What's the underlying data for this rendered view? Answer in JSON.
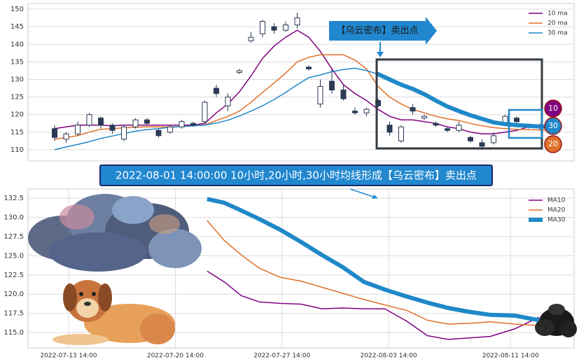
{
  "chart_data": [
    {
      "type": "candlestick",
      "open": [
        116,
        113,
        114.5,
        117,
        119,
        117,
        113,
        116.5,
        118.5,
        115.5,
        115,
        116.5,
        117.5,
        118,
        127.5,
        122.5,
        132,
        141,
        143,
        145,
        144,
        145.5,
        133.5,
        123,
        129.5,
        127,
        121,
        120.5,
        124,
        117,
        112.5,
        122,
        119,
        117.5,
        116,
        115.5,
        113.5,
        112,
        112,
        117.5,
        119,
        117,
        116.5,
        117
      ],
      "high": [
        117,
        115,
        118,
        120.5,
        119.5,
        117.5,
        117,
        119,
        119,
        116,
        117,
        118.5,
        118,
        124,
        128.5,
        126,
        133,
        143.5,
        147,
        146,
        146.5,
        149,
        134,
        130,
        133,
        128.5,
        122,
        122,
        124.5,
        118,
        117,
        123,
        120,
        118,
        116.5,
        118,
        114,
        113,
        115,
        120,
        119.5,
        117.5,
        117.5,
        118
      ],
      "low": [
        112.5,
        112,
        114,
        116.5,
        116,
        114.5,
        112.5,
        116,
        117,
        113.5,
        114.5,
        116,
        116.5,
        117.5,
        125,
        121,
        131.5,
        140.5,
        142,
        143,
        143.5,
        144.5,
        132.5,
        122,
        126,
        124,
        120,
        119.5,
        122,
        114,
        112,
        120,
        118.5,
        116.5,
        115,
        115,
        112,
        110,
        111.5,
        117,
        117.5,
        116,
        115.5,
        116.5
      ],
      "close": [
        113.5,
        114.5,
        117,
        120,
        117,
        115.5,
        116.5,
        118.5,
        117.5,
        114,
        116.5,
        118,
        117,
        123.5,
        126,
        125,
        132.5,
        142,
        146.5,
        144,
        145.5,
        147.5,
        133,
        128,
        127,
        124.5,
        120.5,
        121.5,
        122.5,
        115,
        116.5,
        121,
        119.5,
        117,
        115.5,
        117,
        112.5,
        111,
        114,
        119.5,
        118,
        116.5,
        117,
        117.5
      ],
      "up_color": "#ffffff",
      "down_color": "#2b3a55",
      "series": [
        {
          "name": "10 ma",
          "color": "#800080",
          "values": [
            116,
            116.5,
            117,
            117,
            117,
            116.8,
            117,
            117,
            117,
            117,
            117,
            117,
            117,
            117.5,
            120.5,
            123,
            126.5,
            131,
            136,
            139.5,
            142,
            144,
            142,
            138,
            133,
            128.5,
            126,
            124,
            121.5,
            119.5,
            118.5,
            118.5,
            118,
            117.5,
            116.5,
            116,
            115,
            114.5,
            114.5,
            115,
            115.5,
            116.5,
            117,
            117
          ]
        },
        {
          "name": "20 ma",
          "color": "#e0702a",
          "values": [
            113,
            113.5,
            114,
            115,
            115.8,
            116,
            116.2,
            116.4,
            116.5,
            116.5,
            116.5,
            116.6,
            116.8,
            117.1,
            118.3,
            119.5,
            121,
            123.5,
            126.3,
            129,
            131.8,
            135,
            136.3,
            137,
            137,
            137,
            135.5,
            133,
            128,
            125,
            123,
            121.5,
            120.5,
            119.5,
            118.8,
            118.3,
            117.5,
            116.8,
            116.3,
            116,
            115.8,
            115.7,
            115.6,
            115.5
          ]
        },
        {
          "name": "30 ma",
          "color": "#1f88c8",
          "values": [
            110,
            110.8,
            111.5,
            112.3,
            113.2,
            113.9,
            114.6,
            115.3,
            115.7,
            116,
            116.4,
            116.6,
            116.8,
            117,
            117.6,
            118.4,
            119.6,
            121,
            122.5,
            124.3,
            126.3,
            128.5,
            130.5,
            131.3,
            132.2,
            132.8,
            133.2,
            132.5,
            131.5,
            130,
            128.5,
            127.3,
            125.8,
            124,
            122.3,
            121,
            119.8,
            118.8,
            117.8,
            117.3,
            117,
            116.8,
            116.6,
            116.5
          ]
        }
      ],
      "ylim": [
        106.8,
        151.6
      ],
      "yticks": [
        110,
        115,
        120,
        125,
        130,
        135,
        140,
        145,
        150
      ],
      "grid": true,
      "legend": "upper right",
      "annotation": "【乌云密布】卖出点",
      "badges": [
        {
          "label": 10,
          "color": "#800080"
        },
        {
          "label": 30,
          "color": "#1f88c8"
        },
        {
          "label": 20,
          "color": "#e0702a"
        }
      ]
    },
    {
      "type": "line",
      "x": [
        "2022-07-22 16:00",
        "2022-07-23 19:00",
        "2022-07-24 22:00",
        "2022-07-26 02:00",
        "2022-07-27 11:00",
        "2022-07-28 20:00",
        "2022-07-30 05:00",
        "2022-07-31 14:00",
        "2022-08-01 23:00",
        "2022-08-03 08:00",
        "2022-08-04 18:00",
        "2022-08-06 03:00",
        "2022-08-07 12:00",
        "2022-08-08 21:00",
        "2022-08-10 06:00",
        "2022-08-11 21:00",
        "2022-08-13 11:00"
      ],
      "series": [
        {
          "name": "MA10",
          "color": "#800080",
          "width": 1.5,
          "values": [
            123.0,
            121.6,
            119.8,
            119.0,
            118.8,
            118.7,
            118.1,
            118.2,
            118.1,
            118.1,
            116.5,
            114.6,
            114.1,
            114.3,
            114.5,
            115.5,
            117.0
          ]
        },
        {
          "name": "MA20",
          "color": "#e0702a",
          "width": 1.5,
          "values": [
            129.6,
            127.0,
            125.1,
            123.4,
            122.2,
            121.7,
            120.9,
            120.1,
            119.3,
            118.6,
            117.9,
            116.6,
            116.1,
            116.2,
            116.4,
            116.1,
            115.9
          ]
        },
        {
          "name": "MA30",
          "color": "#1f88c8",
          "width": 6,
          "values": [
            132.4,
            131.9,
            130.9,
            129.8,
            128.4,
            126.8,
            125.1,
            123.5,
            121.6,
            120.6,
            119.7,
            118.9,
            118.2,
            117.7,
            117.3,
            117.2,
            116.6
          ]
        }
      ],
      "xlim": [
        "2022-07-10 22:00",
        "2022-08-15 18:00"
      ],
      "xticks": [
        "2022-07-13 14:00",
        "2022-07-20 14:00",
        "2022-07-27 14:00",
        "2022-08-03 14:00",
        "2022-08-11 14:00"
      ],
      "ylim": [
        113,
        133.7
      ],
      "yticks": [
        {
          "value": 115,
          "label": "115.0"
        },
        {
          "value": 117.5,
          "label": "117.5"
        },
        {
          "value": 120,
          "label": "120.0"
        },
        {
          "value": 122.5,
          "label": "122.5"
        },
        {
          "value": 125,
          "label": "125.0"
        },
        {
          "value": 127.5,
          "label": "127.5"
        },
        {
          "value": 130,
          "label": "130.0"
        },
        {
          "value": 132.5,
          "label": "132.5"
        }
      ],
      "grid": true,
      "legend": "upper right",
      "annotation": "2022-08-01 14:00:00 10小时,20小时,30小时均线形成【乌云密布】卖出点"
    }
  ]
}
